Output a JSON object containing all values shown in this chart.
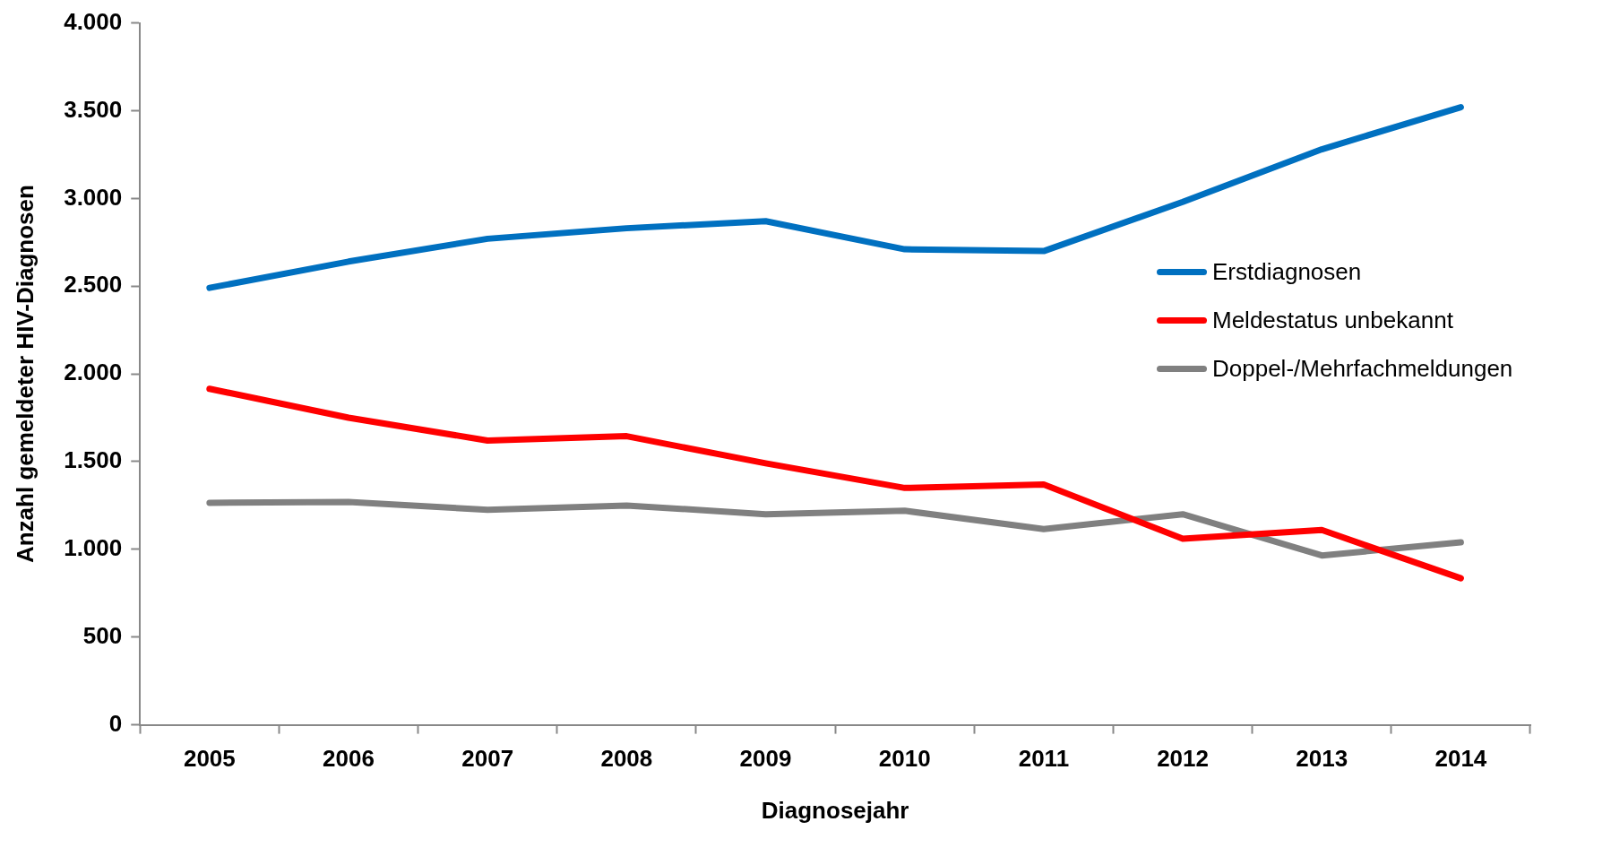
{
  "chart_data": {
    "type": "line",
    "xlabel": "Diagnosejahr",
    "ylabel": "Anzahl gemeldeter HIV-Diagnosen",
    "categories": [
      "2005",
      "2006",
      "2007",
      "2008",
      "2009",
      "2010",
      "2011",
      "2012",
      "2013",
      "2014"
    ],
    "series": [
      {
        "name": "Erstdiagnosen",
        "color": "#0070c0",
        "values": [
          2490,
          2640,
          2770,
          2830,
          2870,
          2710,
          2700,
          2980,
          3280,
          3520
        ]
      },
      {
        "name": "Meldestatus unbekannt",
        "color": "#ff0000",
        "values": [
          1915,
          1750,
          1620,
          1645,
          1490,
          1350,
          1370,
          1060,
          1110,
          835
        ]
      },
      {
        "name": "Doppel-/Mehrfachmeldungen",
        "color": "#808080",
        "values": [
          1265,
          1270,
          1225,
          1250,
          1200,
          1220,
          1115,
          1200,
          965,
          1040
        ]
      }
    ],
    "ylim": [
      0,
      4000
    ],
    "yticks": [
      0,
      500,
      {
        "value": 1000,
        "label": "1.000"
      },
      {
        "value": 1500,
        "label": "1.500"
      },
      {
        "value": 2000,
        "label": "2.000"
      },
      {
        "value": 2500,
        "label": "2.500"
      },
      {
        "value": 3000,
        "label": "3.000"
      },
      {
        "value": 3500,
        "label": "3.500"
      },
      {
        "value": 4000,
        "label": "4.000"
      }
    ],
    "grid": false,
    "legend": "right",
    "marker": "none",
    "line_style": "solid"
  }
}
